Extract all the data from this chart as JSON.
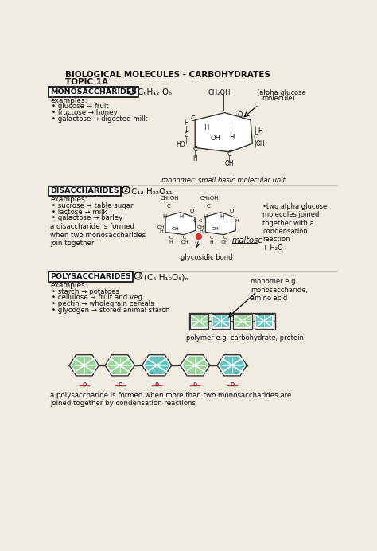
{
  "title_line1": "BIOLOGICAL MOLECULES - CARBOHYDRATES",
  "title_line2": "TOPIC 1A",
  "paper_color": "#f0ece0",
  "text_color": "#111111",
  "section1_label": "MONOSACCHARIDES",
  "section1_formula": "C₆H₁₂ O₆",
  "section1_examples": [
    "glucose → fruit",
    "fructose → honey",
    "galactose → digested milk"
  ],
  "section1_monomer_text": "monomer: small basic molecular unit",
  "section1_alpha": "(alpha glucose\n  molecule)",
  "section2_label": "DISACCHARIDES",
  "section2_formula": "C₁₂ H₂₂O₁₁",
  "section2_examples": [
    "sucrose → table sugar",
    "lactose → milk",
    "galactose → barley"
  ],
  "section2_extra": "a disaccharide is formed\nwhen two monosaccharides\njoin together",
  "section2_glyco": "glycosidic bond",
  "section2_maltose": "maltose",
  "section2_two_alpha": "•two alpha glucose\nmolecules joined\ntogether with a\ncondensation\nreaction\n+ H₂O",
  "section3_label": "POLYSACCHARIDES",
  "section3_formula": "(C₆ H₁₀O₅)ₙ",
  "section3_examples": [
    "starch → potatoes",
    "cellulose → fruit and veg",
    "pectin → wholegrain cereals",
    "glycogen → stored animal starch"
  ],
  "section3_monomer": "monomer e.g.\nmonosaccharide,\namino acid",
  "section3_polymer": "polymer e.g. carbohydrate, protein",
  "section3_bottom": "a polysaccharide is formed when more than two monosaccharides are\njoined together by condensation reactions",
  "green_color": "#7dc87d",
  "teal_color": "#3ab5b0"
}
